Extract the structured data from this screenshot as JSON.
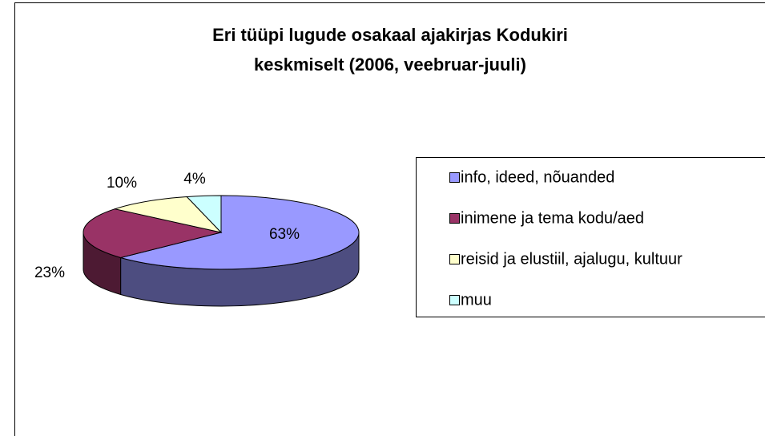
{
  "chart_data": {
    "type": "pie",
    "title": [
      "Eri tüüpi lugude osakaal ajakirjas Kodukiri",
      "keskmiselt (2006, veebruar-juuli)"
    ],
    "categories": [
      "info, ideed, nõuanded",
      "inimene ja tema kodu/aed",
      "reisid ja elustiil, ajalugu, kultuur",
      "muu"
    ],
    "values": [
      63,
      23,
      10,
      4
    ],
    "value_labels": [
      "63%",
      "23%",
      "10%",
      "4%"
    ],
    "colors": [
      "#9999ff",
      "#993366",
      "#ffffcc",
      "#ccffff"
    ],
    "legend": "right"
  }
}
